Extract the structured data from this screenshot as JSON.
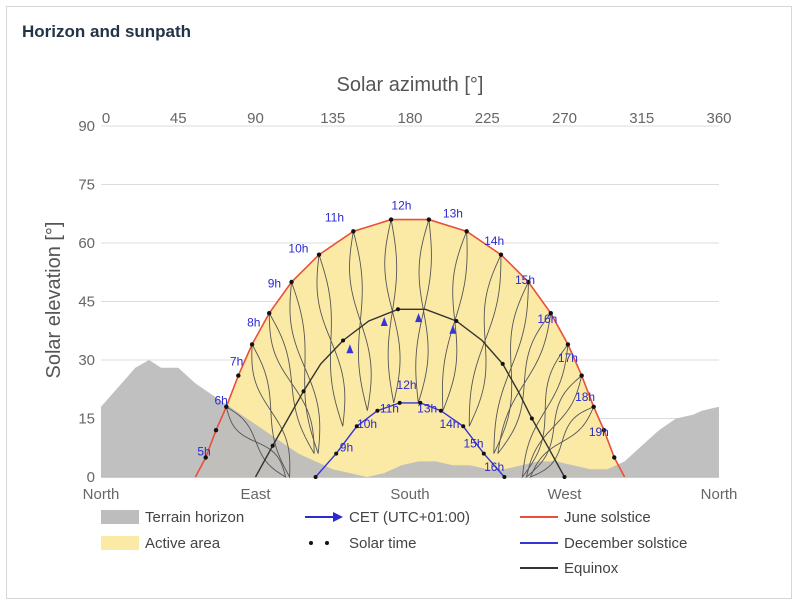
{
  "panel": {
    "title": "Horizon and sunpath"
  },
  "chart_data": {
    "type": "line",
    "xlabel": "Solar azimuth [°]",
    "ylabel": "Solar elevation [°]",
    "xlim": [
      0,
      360
    ],
    "ylim": [
      0,
      90
    ],
    "x_ticks_top": [
      0,
      45,
      90,
      135,
      180,
      225,
      270,
      315,
      360
    ],
    "y_ticks": [
      0,
      15,
      30,
      45,
      60,
      75,
      90
    ],
    "x_ticks_bottom": [
      {
        "x": 0,
        "label": "North"
      },
      {
        "x": 90,
        "label": "East"
      },
      {
        "x": 180,
        "label": "South"
      },
      {
        "x": 270,
        "label": "West"
      },
      {
        "x": 360,
        "label": "North"
      }
    ],
    "grid": true,
    "colors": {
      "terrain": "#bdbdbd",
      "active": "#fbeaa6",
      "june": "#e8503a",
      "december": "#3535d8",
      "equinox": "#333333",
      "analemma": "#555555"
    },
    "series": [
      {
        "name": "Terrain horizon",
        "x": [
          0,
          10,
          20,
          28,
          35,
          45,
          55,
          65,
          75,
          85,
          95,
          105,
          115,
          125,
          135,
          145,
          155,
          165,
          175,
          185,
          195,
          205,
          215,
          225,
          235,
          245,
          255,
          265,
          275,
          285,
          295,
          305,
          315,
          325,
          335,
          345,
          350,
          360
        ],
        "y": [
          18,
          23,
          28,
          30,
          28,
          28,
          24,
          21,
          18,
          15,
          12,
          9,
          6,
          4,
          2,
          1,
          0,
          1,
          3,
          4,
          4,
          3,
          3,
          2,
          2,
          3,
          4,
          4,
          3,
          2,
          2,
          4,
          8,
          12,
          15,
          16,
          17,
          18
        ]
      },
      {
        "name": "June solstice",
        "x": [
          55,
          61,
          67,
          73,
          80,
          88,
          98,
          111,
          127,
          147,
          169,
          191,
          213,
          233,
          249,
          262,
          272,
          280,
          287,
          293,
          299,
          305
        ],
        "y": [
          0,
          5,
          12,
          18,
          26,
          34,
          42,
          50,
          57,
          63,
          66,
          66,
          63,
          57,
          50,
          42,
          34,
          26,
          18,
          12,
          5,
          0
        ]
      },
      {
        "name": "December solstice",
        "x": [
          125,
          137,
          149,
          161,
          174,
          186,
          198,
          211,
          223,
          235
        ],
        "y": [
          0,
          6,
          13,
          17,
          19,
          19,
          17,
          13,
          6,
          0
        ]
      },
      {
        "name": "Equinox",
        "x": [
          90,
          100,
          109,
          118,
          128,
          141,
          156,
          173,
          189,
          207,
          222,
          234,
          243,
          251,
          260,
          270
        ],
        "y": [
          0,
          8,
          15,
          22,
          29,
          35,
          40,
          43,
          43,
          40,
          35,
          29,
          22,
          15,
          8,
          0
        ]
      }
    ],
    "hour_labels": [
      {
        "label": "5h",
        "x": 60,
        "y": 4
      },
      {
        "label": "6h",
        "x": 70,
        "y": 17
      },
      {
        "label": "7h",
        "x": 79,
        "y": 27
      },
      {
        "label": "8h",
        "x": 89,
        "y": 37
      },
      {
        "label": "9h",
        "x": 101,
        "y": 47
      },
      {
        "label": "10h",
        "x": 115,
        "y": 56
      },
      {
        "label": "11h",
        "x": 136,
        "y": 64
      },
      {
        "label": "12h",
        "x": 175,
        "y": 67
      },
      {
        "label": "13h",
        "x": 205,
        "y": 65
      },
      {
        "label": "14h",
        "x": 229,
        "y": 58
      },
      {
        "label": "15h",
        "x": 247,
        "y": 48
      },
      {
        "label": "16h",
        "x": 260,
        "y": 38
      },
      {
        "label": "17h",
        "x": 272,
        "y": 28
      },
      {
        "label": "18h",
        "x": 282,
        "y": 18
      },
      {
        "label": "19h",
        "x": 290,
        "y": 9
      },
      {
        "label": "9h",
        "x": 143,
        "y": 5
      },
      {
        "label": "10h",
        "x": 155,
        "y": 11
      },
      {
        "label": "11h",
        "x": 168,
        "y": 15
      },
      {
        "label": "12h",
        "x": 178,
        "y": 21
      },
      {
        "label": "13h",
        "x": 190,
        "y": 15
      },
      {
        "label": "14h",
        "x": 203,
        "y": 11
      },
      {
        "label": "15h",
        "x": 217,
        "y": 6
      },
      {
        "label": "16h",
        "x": 229,
        "y": 0
      }
    ],
    "legend": [
      {
        "label": "Terrain horizon",
        "kind": "area",
        "color": "#bdbdbd"
      },
      {
        "label": "Active area",
        "kind": "area",
        "color": "#fbeaa6"
      },
      {
        "label": "CET (UTC+01:00)",
        "kind": "arrow",
        "color": "#2a2ad0"
      },
      {
        "label": "Solar time",
        "kind": "dots",
        "color": "#111111"
      },
      {
        "label": "June solstice",
        "kind": "line",
        "color": "#e8503a"
      },
      {
        "label": "December solstice",
        "kind": "line",
        "color": "#3535d8"
      },
      {
        "label": "Equinox",
        "kind": "line",
        "color": "#333333"
      }
    ],
    "legend_position": "bottom"
  }
}
